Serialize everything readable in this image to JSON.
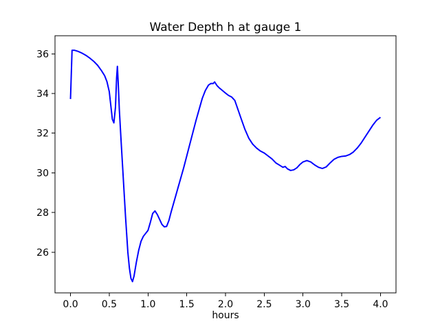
{
  "figure": {
    "background": "#ffffff"
  },
  "chart_data": {
    "type": "line",
    "title": "Water Depth h at gauge 1",
    "xlabel": "hours",
    "ylabel": "",
    "grid": false,
    "legend_position": "none",
    "line_color": "#0000ff",
    "frame_color": "#000000",
    "text_color": "#000000",
    "xlim": [
      -0.2,
      4.2
    ],
    "ylim": [
      23.95,
      36.91
    ],
    "xticks": [
      0.0,
      0.5,
      1.0,
      1.5,
      2.0,
      2.5,
      3.0,
      3.5,
      4.0
    ],
    "xticklabels": [
      "0.0",
      "0.5",
      "1.0",
      "1.5",
      "2.0",
      "2.5",
      "3.0",
      "3.5",
      "4.0"
    ],
    "yticks": [
      26,
      28,
      30,
      32,
      34,
      36
    ],
    "yticklabels": [
      "26",
      "28",
      "30",
      "32",
      "34",
      "36"
    ],
    "x": [
      0.0,
      0.02,
      0.05,
      0.1,
      0.15,
      0.2,
      0.25,
      0.3,
      0.35,
      0.4,
      0.44,
      0.47,
      0.5,
      0.52,
      0.54,
      0.56,
      0.58,
      0.595,
      0.605,
      0.615,
      0.63,
      0.65,
      0.68,
      0.71,
      0.74,
      0.76,
      0.78,
      0.8,
      0.82,
      0.85,
      0.88,
      0.91,
      0.94,
      0.97,
      1.0,
      1.03,
      1.06,
      1.09,
      1.12,
      1.15,
      1.18,
      1.21,
      1.24,
      1.27,
      1.3,
      1.34,
      1.38,
      1.42,
      1.46,
      1.5,
      1.54,
      1.58,
      1.62,
      1.66,
      1.7,
      1.74,
      1.78,
      1.81,
      1.84,
      1.86,
      1.89,
      1.92,
      1.96,
      2.0,
      2.04,
      2.08,
      2.12,
      2.16,
      2.2,
      2.25,
      2.3,
      2.35,
      2.4,
      2.45,
      2.5,
      2.55,
      2.6,
      2.65,
      2.7,
      2.74,
      2.77,
      2.8,
      2.84,
      2.88,
      2.92,
      2.96,
      3.0,
      3.05,
      3.1,
      3.15,
      3.2,
      3.25,
      3.3,
      3.35,
      3.4,
      3.45,
      3.5,
      3.55,
      3.6,
      3.65,
      3.7,
      3.75,
      3.8,
      3.85,
      3.9,
      3.95,
      4.0
    ],
    "y": [
      33.72,
      36.18,
      36.18,
      36.12,
      36.03,
      35.92,
      35.78,
      35.62,
      35.42,
      35.15,
      34.9,
      34.6,
      34.1,
      33.4,
      32.7,
      32.52,
      33.3,
      34.8,
      35.37,
      34.6,
      33.2,
      31.8,
      29.8,
      27.8,
      26.0,
      25.2,
      24.68,
      24.52,
      24.8,
      25.5,
      26.1,
      26.55,
      26.8,
      26.95,
      27.1,
      27.5,
      27.95,
      28.08,
      27.9,
      27.65,
      27.4,
      27.28,
      27.3,
      27.6,
      28.05,
      28.6,
      29.15,
      29.7,
      30.25,
      30.85,
      31.45,
      32.05,
      32.65,
      33.2,
      33.75,
      34.15,
      34.42,
      34.5,
      34.5,
      34.58,
      34.4,
      34.28,
      34.15,
      34.02,
      33.9,
      33.82,
      33.65,
      33.2,
      32.75,
      32.2,
      31.75,
      31.45,
      31.25,
      31.1,
      31.0,
      30.85,
      30.7,
      30.5,
      30.38,
      30.28,
      30.32,
      30.2,
      30.12,
      30.15,
      30.25,
      30.42,
      30.55,
      30.62,
      30.55,
      30.4,
      30.28,
      30.22,
      30.3,
      30.5,
      30.68,
      30.78,
      30.83,
      30.85,
      30.92,
      31.05,
      31.25,
      31.5,
      31.8,
      32.1,
      32.4,
      32.65,
      32.8
    ]
  }
}
